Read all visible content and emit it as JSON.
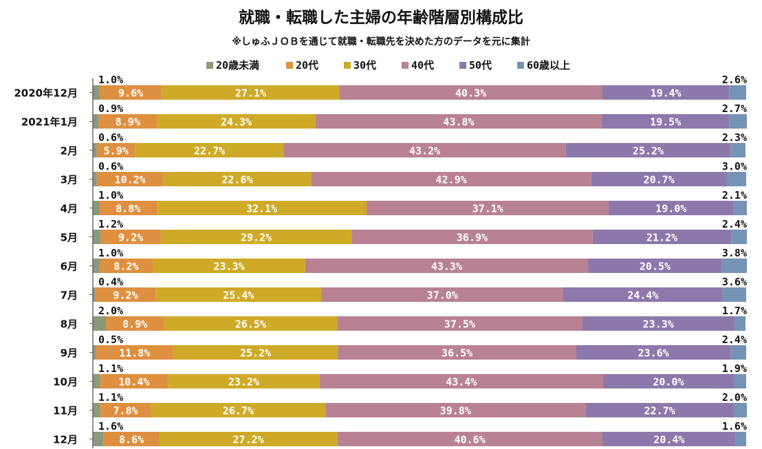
{
  "chart_data": {
    "type": "bar",
    "orientation": "horizontal",
    "stacked": true,
    "percent": true,
    "title": "就職・転職した主婦の年齢階層別構成比",
    "subtitle": "※しゅふＪＯＢを通じて就職・転職先を決めた方のデータを元に集計",
    "legend_position": "top",
    "xlim": [
      0,
      100
    ],
    "categories": [
      "2020年12月",
      "2021年1月",
      "2月",
      "3月",
      "4月",
      "5月",
      "6月",
      "7月",
      "8月",
      "9月",
      "10月",
      "11月",
      "12月"
    ],
    "series": [
      {
        "name": "20歳未満",
        "color": "#8a9a7b",
        "values": [
          1.0,
          0.9,
          0.6,
          0.6,
          1.0,
          1.2,
          1.0,
          0.4,
          2.0,
          0.5,
          1.1,
          1.1,
          1.6
        ]
      },
      {
        "name": "20代",
        "color": "#de9040",
        "values": [
          9.6,
          8.9,
          5.9,
          10.2,
          8.8,
          9.2,
          8.2,
          9.2,
          8.9,
          11.8,
          10.4,
          7.8,
          8.6
        ]
      },
      {
        "name": "30代",
        "color": "#ceaa28",
        "values": [
          27.1,
          24.3,
          22.7,
          22.6,
          32.1,
          29.2,
          23.3,
          25.4,
          26.5,
          25.2,
          23.2,
          26.7,
          27.2
        ]
      },
      {
        "name": "40代",
        "color": "#b98293",
        "values": [
          40.3,
          43.8,
          43.2,
          42.9,
          37.1,
          36.9,
          43.3,
          37.0,
          37.5,
          36.5,
          43.4,
          39.8,
          40.6
        ]
      },
      {
        "name": "50代",
        "color": "#8d78ab",
        "values": [
          19.4,
          19.5,
          25.2,
          20.7,
          19.0,
          21.2,
          20.5,
          24.4,
          23.3,
          23.6,
          20.0,
          22.7,
          20.4
        ]
      },
      {
        "name": "60歳以上",
        "color": "#7593b5",
        "values": [
          2.6,
          2.7,
          2.3,
          3.0,
          2.1,
          2.4,
          3.8,
          3.6,
          1.7,
          2.4,
          1.9,
          2.0,
          1.6
        ]
      }
    ],
    "value_labels": [
      [
        "1.0%",
        "9.6%",
        "27.1%",
        "40.3%",
        "19.4%",
        "2.6%"
      ],
      [
        "0.9%",
        "8.9%",
        "24.3%",
        "43.8%",
        "19.5%",
        "2.7%"
      ],
      [
        "0.6%",
        "5.9%",
        "22.7%",
        "43.2%",
        "25.2%",
        "2.3%"
      ],
      [
        "0.6%",
        "10.2%",
        "22.6%",
        "42.9%",
        "20.7%",
        "3.0%"
      ],
      [
        "1.0%",
        "8.8%",
        "32.1%",
        "37.1%",
        "19.0%",
        "2.1%"
      ],
      [
        "1.2%",
        "9.2%",
        "29.2%",
        "36.9%",
        "21.2%",
        "2.4%"
      ],
      [
        "1.0%",
        "8.2%",
        "23.3%",
        "43.3%",
        "20.5%",
        "3.8%"
      ],
      [
        "0.4%",
        "9.2%",
        "25.4%",
        "37.0%",
        "24.4%",
        "3.6%"
      ],
      [
        "2.0%",
        "8.9%",
        "26.5%",
        "37.5%",
        "23.3%",
        "1.7%"
      ],
      [
        "0.5%",
        "11.8%",
        "25.2%",
        "36.5%",
        "23.6%",
        "2.4%"
      ],
      [
        "1.1%",
        "10.4%",
        "23.2%",
        "43.4%",
        "20.0%",
        "1.9%"
      ],
      [
        "1.1%",
        "7.8%",
        "26.7%",
        "39.8%",
        "22.7%",
        "2.0%"
      ],
      [
        "1.6%",
        "8.6%",
        "27.2%",
        "40.6%",
        "20.4%",
        "1.6%"
      ]
    ]
  }
}
